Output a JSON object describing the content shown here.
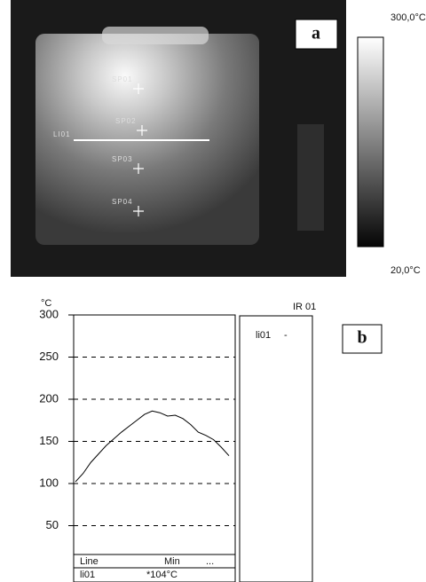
{
  "thermal_image": {
    "panel_label": "a",
    "scale_max": "300,0°C",
    "scale_min": "20,0°C",
    "line_label": "LI01",
    "spots": [
      "SP01",
      "SP02",
      "SP03",
      "SP04"
    ]
  },
  "chart_data": {
    "type": "line",
    "panel_label": "b",
    "y_unit": "°C",
    "ylim": [
      20,
      300
    ],
    "yticks": [
      50,
      100,
      150,
      200,
      250,
      300
    ],
    "grid": true,
    "series": [
      {
        "name": "li01",
        "color": "#000000",
        "values": [
          102,
          112,
          125,
          135,
          145,
          153,
          161,
          168,
          175,
          182,
          186,
          184,
          180,
          181,
          177,
          170,
          161,
          157,
          152,
          143,
          133
        ]
      }
    ],
    "legend_title": "IR 01",
    "legend_value": "-",
    "table": {
      "headers": [
        "Line",
        "Min",
        "..."
      ],
      "rows": [
        [
          "li01",
          "*104°C"
        ]
      ]
    }
  }
}
